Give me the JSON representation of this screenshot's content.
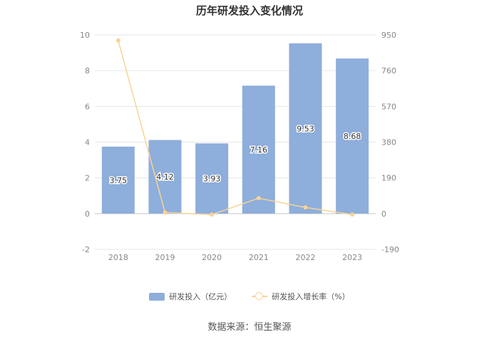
{
  "title": "历年研发投入变化情况",
  "source": "数据来源：恒生聚源",
  "colors": {
    "bar": "#8eaedb",
    "line": "#f8d396",
    "grid": "#e6e6e6",
    "axis": "#cccccc"
  },
  "chart_data": {
    "type": "bar",
    "categories": [
      "2018",
      "2019",
      "2020",
      "2021",
      "2022",
      "2023"
    ],
    "series": [
      {
        "name": "研发投入（亿元）",
        "type": "bar",
        "axis": "left",
        "values": [
          3.75,
          4.12,
          3.93,
          7.16,
          9.53,
          8.68
        ],
        "labels": [
          "3.75",
          "4.12",
          "3.93",
          "7.16",
          "9.53",
          "8.68"
        ]
      },
      {
        "name": "研发投入增长率（%）",
        "type": "line",
        "axis": "right",
        "values": [
          920,
          6,
          -5,
          82,
          33,
          -5
        ]
      }
    ],
    "y_left": {
      "min": -2,
      "max": 10,
      "ticks": [
        "-2",
        "0",
        "2",
        "4",
        "6",
        "8",
        "10"
      ]
    },
    "y_right": {
      "min": -190,
      "max": 950,
      "ticks": [
        "-190",
        "0",
        "190",
        "380",
        "570",
        "760",
        "950"
      ]
    },
    "grid": true,
    "legend_position": "bottom"
  }
}
